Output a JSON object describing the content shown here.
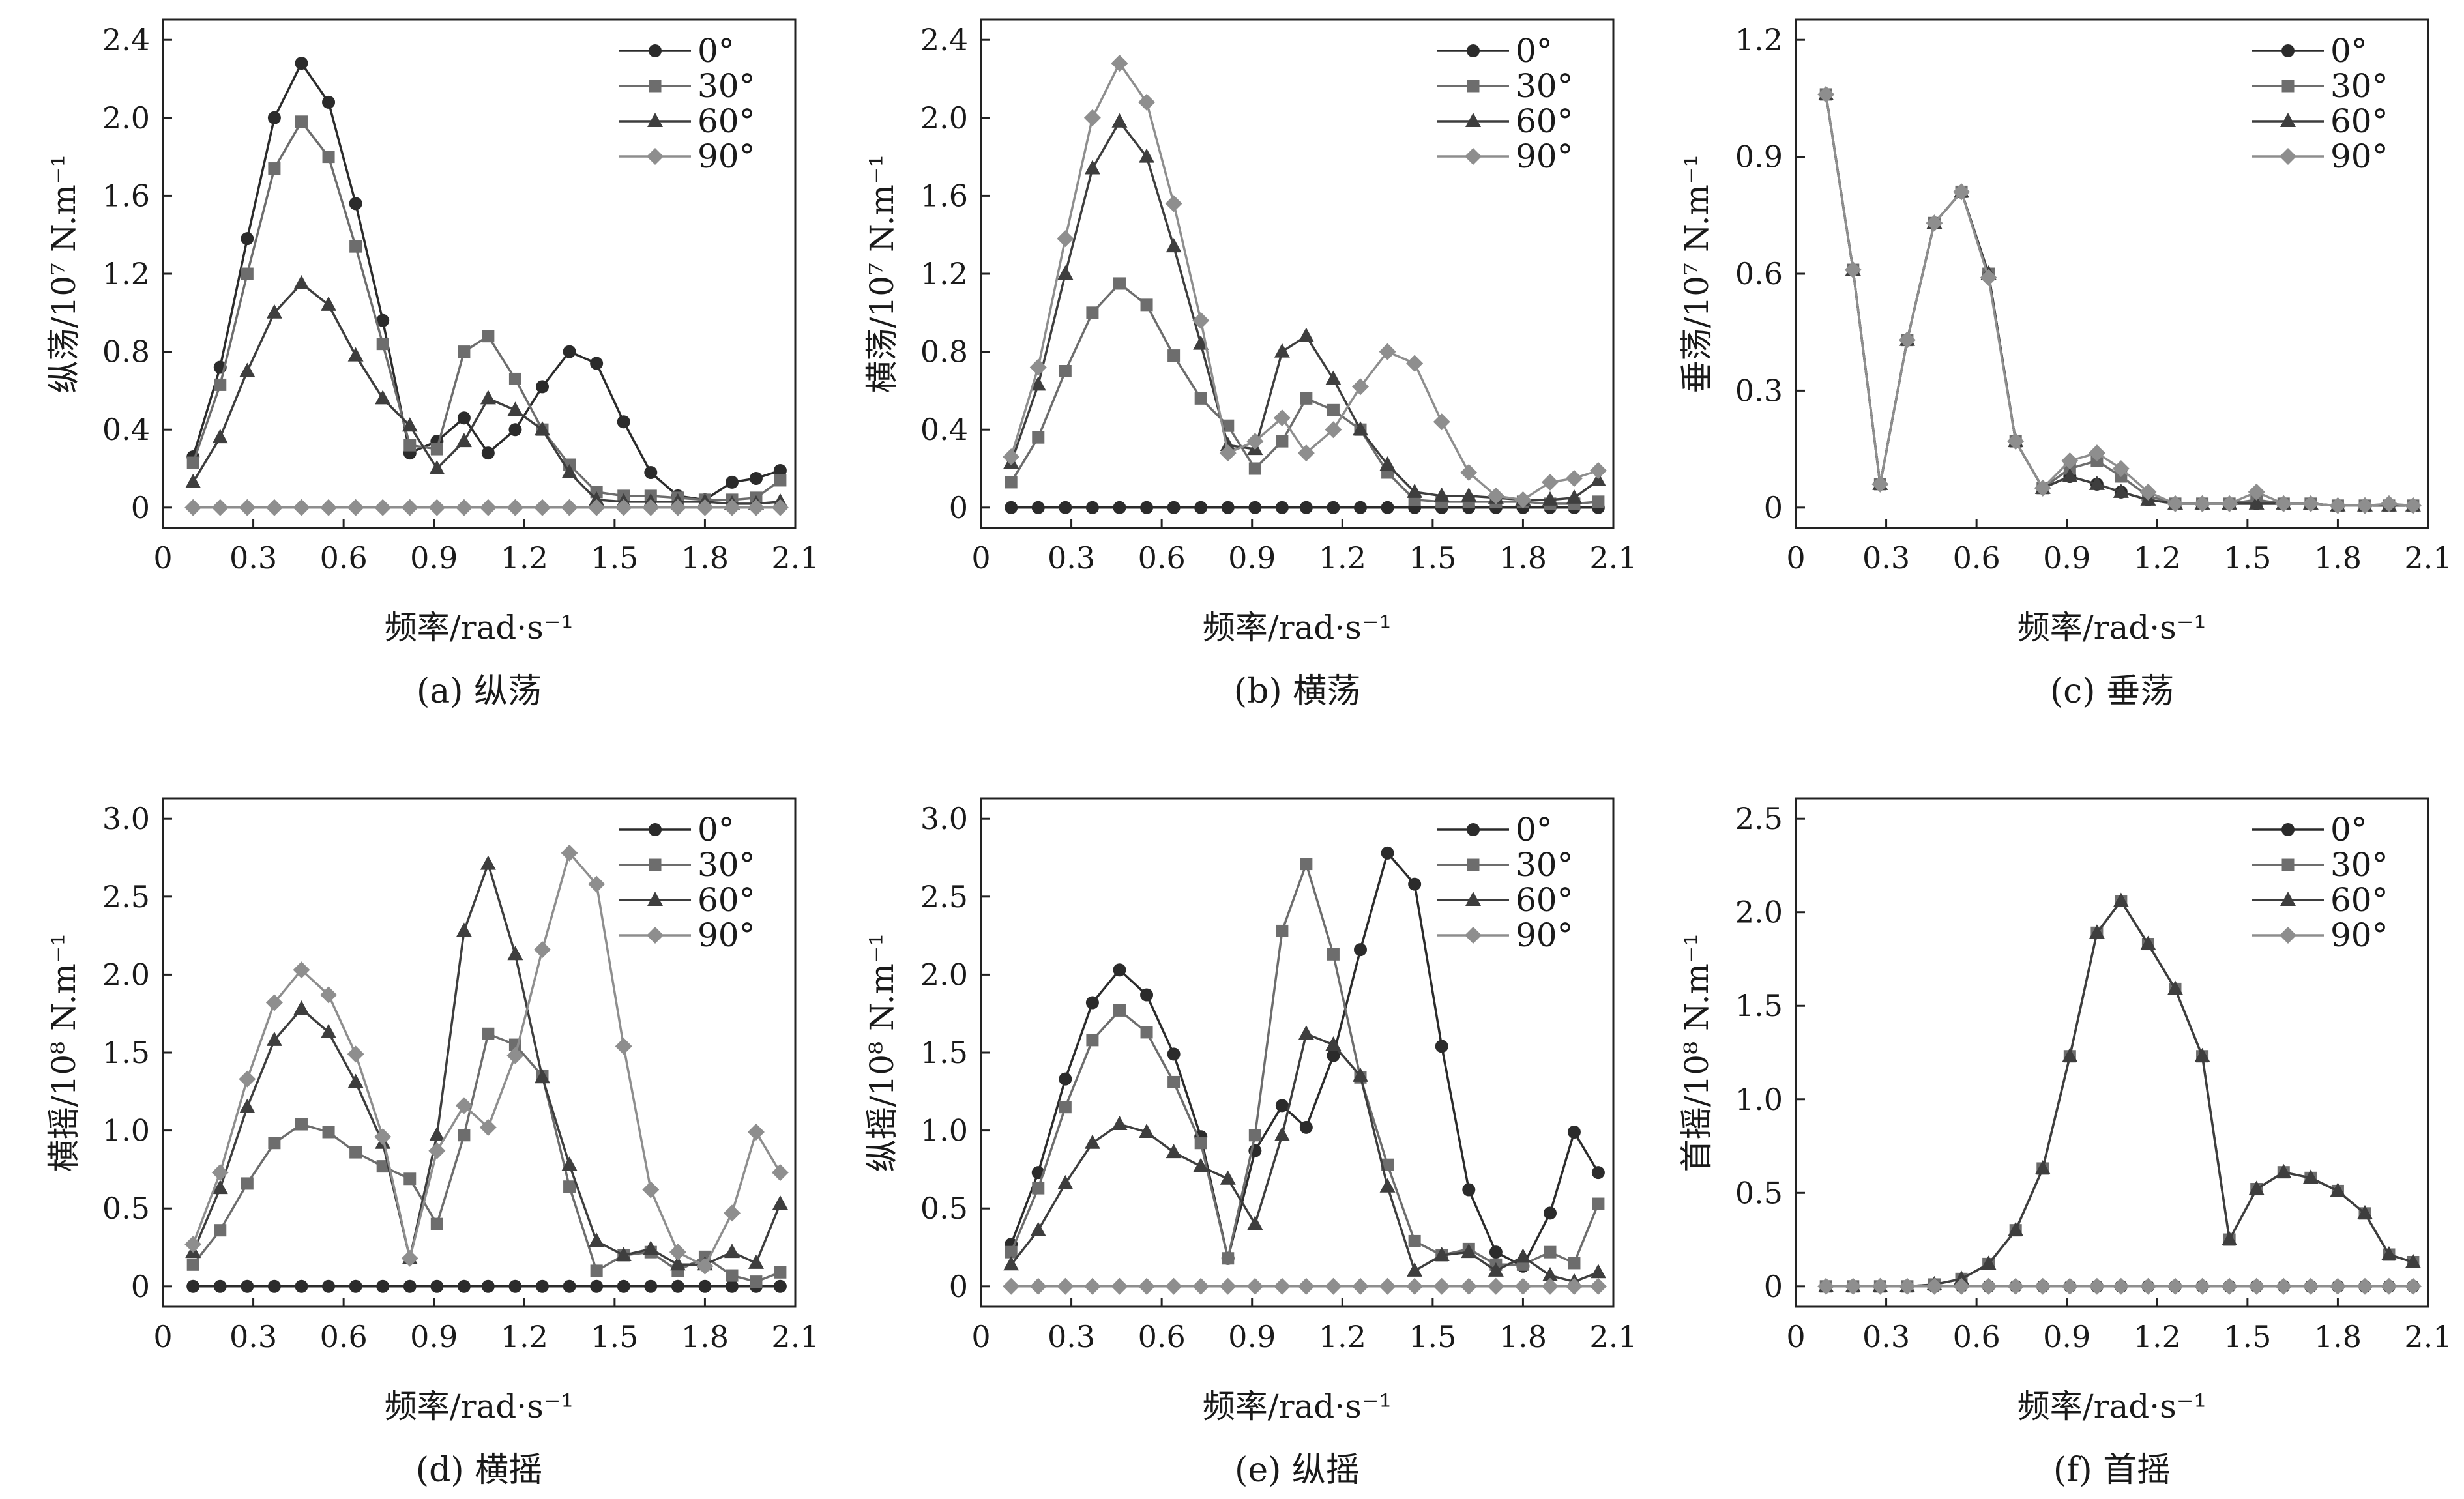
{
  "legend": [
    "0°",
    "30°",
    "60°",
    "90°"
  ],
  "series_colors": [
    "#2b2b2b",
    "#6d6d6d",
    "#3e3e3e",
    "#8e8e8e"
  ],
  "chart_data": [
    {
      "id": "a",
      "type": "line",
      "caption": "(a) 纵荡",
      "ylabel": "纵荡/10⁷ N.m⁻¹",
      "xlabel": "频率/rad·s⁻¹",
      "xlim": [
        0,
        2.1
      ],
      "ylim": [
        0,
        2.4
      ],
      "xticks": [
        "0",
        "0.3",
        "0.6",
        "0.9",
        "1.2",
        "1.5",
        "1.8",
        "2.1"
      ],
      "yticks": [
        "0",
        "0.4",
        "0.8",
        "1.2",
        "1.6",
        "2.0",
        "2.4"
      ],
      "x": [
        0.1,
        0.19,
        0.28,
        0.37,
        0.46,
        0.55,
        0.64,
        0.73,
        0.82,
        0.91,
        1.0,
        1.08,
        1.17,
        1.26,
        1.35,
        1.44,
        1.53,
        1.62,
        1.71,
        1.8,
        1.89,
        1.97,
        2.05
      ],
      "series": [
        {
          "name": "0°",
          "values": [
            0.26,
            0.72,
            1.38,
            2.0,
            2.28,
            2.08,
            1.56,
            0.96,
            0.28,
            0.34,
            0.46,
            0.28,
            0.4,
            0.62,
            0.8,
            0.74,
            0.44,
            0.18,
            0.06,
            0.04,
            0.13,
            0.15,
            0.19
          ]
        },
        {
          "name": "30°",
          "values": [
            0.23,
            0.63,
            1.2,
            1.74,
            1.98,
            1.8,
            1.34,
            0.84,
            0.32,
            0.3,
            0.8,
            0.88,
            0.66,
            0.4,
            0.22,
            0.08,
            0.06,
            0.06,
            0.05,
            0.04,
            0.04,
            0.05,
            0.14
          ]
        },
        {
          "name": "60°",
          "values": [
            0.13,
            0.36,
            0.7,
            1.0,
            1.15,
            1.04,
            0.78,
            0.56,
            0.42,
            0.2,
            0.34,
            0.56,
            0.5,
            0.4,
            0.18,
            0.04,
            0.03,
            0.03,
            0.03,
            0.03,
            0.02,
            0.02,
            0.03
          ]
        },
        {
          "name": "90°",
          "values": [
            0,
            0,
            0,
            0,
            0,
            0,
            0,
            0,
            0,
            0,
            0,
            0,
            0,
            0,
            0,
            0,
            0,
            0,
            0,
            0,
            0,
            0,
            0
          ]
        }
      ]
    },
    {
      "id": "b",
      "type": "line",
      "caption": "(b) 横荡",
      "ylabel": "横荡/10⁷ N.m⁻¹",
      "xlabel": "频率/rad·s⁻¹",
      "xlim": [
        0,
        2.1
      ],
      "ylim": [
        0,
        2.4
      ],
      "xticks": [
        "0",
        "0.3",
        "0.6",
        "0.9",
        "1.2",
        "1.5",
        "1.8",
        "2.1"
      ],
      "yticks": [
        "0",
        "0.4",
        "0.8",
        "1.2",
        "1.6",
        "2.0",
        "2.4"
      ],
      "x": [
        0.1,
        0.19,
        0.28,
        0.37,
        0.46,
        0.55,
        0.64,
        0.73,
        0.82,
        0.91,
        1.0,
        1.08,
        1.17,
        1.26,
        1.35,
        1.44,
        1.53,
        1.62,
        1.71,
        1.8,
        1.89,
        1.97,
        2.05
      ],
      "series": [
        {
          "name": "0°",
          "values": [
            0,
            0,
            0,
            0,
            0,
            0,
            0,
            0,
            0,
            0,
            0,
            0,
            0,
            0,
            0,
            0,
            0,
            0,
            0,
            0,
            0,
            0,
            0
          ]
        },
        {
          "name": "30°",
          "values": [
            0.13,
            0.36,
            0.7,
            1.0,
            1.15,
            1.04,
            0.78,
            0.56,
            0.42,
            0.2,
            0.34,
            0.56,
            0.5,
            0.4,
            0.18,
            0.04,
            0.03,
            0.03,
            0.03,
            0.03,
            0.02,
            0.02,
            0.03
          ]
        },
        {
          "name": "60°",
          "values": [
            0.23,
            0.63,
            1.2,
            1.74,
            1.98,
            1.8,
            1.34,
            0.84,
            0.32,
            0.3,
            0.8,
            0.88,
            0.66,
            0.4,
            0.22,
            0.08,
            0.06,
            0.06,
            0.05,
            0.04,
            0.04,
            0.05,
            0.14
          ]
        },
        {
          "name": "90°",
          "values": [
            0.26,
            0.72,
            1.38,
            2.0,
            2.28,
            2.08,
            1.56,
            0.96,
            0.28,
            0.34,
            0.46,
            0.28,
            0.4,
            0.62,
            0.8,
            0.74,
            0.44,
            0.18,
            0.06,
            0.04,
            0.13,
            0.15,
            0.19
          ]
        }
      ]
    },
    {
      "id": "c",
      "type": "line",
      "caption": "(c) 垂荡",
      "ylabel": "垂荡/10⁷ N.m⁻¹",
      "xlabel": "频率/rad·s⁻¹",
      "xlim": [
        0,
        2.1
      ],
      "ylim": [
        0,
        1.2
      ],
      "xticks": [
        "0",
        "0.3",
        "0.6",
        "0.9",
        "1.2",
        "1.5",
        "1.8",
        "2.1"
      ],
      "yticks": [
        "0",
        "0.3",
        "0.6",
        "0.9",
        "1.2"
      ],
      "x": [
        0.1,
        0.19,
        0.28,
        0.37,
        0.46,
        0.55,
        0.64,
        0.73,
        0.82,
        0.91,
        1.0,
        1.08,
        1.17,
        1.26,
        1.35,
        1.44,
        1.53,
        1.62,
        1.71,
        1.8,
        1.89,
        1.97,
        2.05
      ],
      "series": [
        {
          "name": "0°",
          "values": [
            1.06,
            0.61,
            0.06,
            0.43,
            0.73,
            0.81,
            0.6,
            0.17,
            0.05,
            0.08,
            0.06,
            0.04,
            0.02,
            0.01,
            0.01,
            0.01,
            0.01,
            0.01,
            0.01,
            0.005,
            0.005,
            0.005,
            0.005
          ]
        },
        {
          "name": "30°",
          "values": [
            1.06,
            0.61,
            0.06,
            0.43,
            0.73,
            0.81,
            0.6,
            0.17,
            0.05,
            0.1,
            0.12,
            0.08,
            0.03,
            0.01,
            0.01,
            0.01,
            0.02,
            0.01,
            0.01,
            0.005,
            0.005,
            0.005,
            0.005
          ]
        },
        {
          "name": "60°",
          "values": [
            1.06,
            0.61,
            0.06,
            0.43,
            0.73,
            0.81,
            0.6,
            0.17,
            0.05,
            0.08,
            0.06,
            0.04,
            0.02,
            0.01,
            0.01,
            0.01,
            0.01,
            0.01,
            0.01,
            0.005,
            0.005,
            0.005,
            0.005
          ]
        },
        {
          "name": "90°",
          "values": [
            1.06,
            0.61,
            0.06,
            0.43,
            0.73,
            0.81,
            0.59,
            0.17,
            0.05,
            0.12,
            0.14,
            0.1,
            0.04,
            0.01,
            0.01,
            0.01,
            0.04,
            0.01,
            0.01,
            0.005,
            0.005,
            0.01,
            0.005
          ]
        }
      ]
    },
    {
      "id": "d",
      "type": "line",
      "caption": "(d) 横摇",
      "ylabel": "横摇/10⁸ N.m⁻¹",
      "xlabel": "频率/rad·s⁻¹",
      "xlim": [
        0,
        2.1
      ],
      "ylim": [
        0,
        3.0
      ],
      "xticks": [
        "0",
        "0.3",
        "0.6",
        "0.9",
        "1.2",
        "1.5",
        "1.8",
        "2.1"
      ],
      "yticks": [
        "0",
        "0.5",
        "1.0",
        "1.5",
        "2.0",
        "2.5",
        "3.0"
      ],
      "x": [
        0.1,
        0.19,
        0.28,
        0.37,
        0.46,
        0.55,
        0.64,
        0.73,
        0.82,
        0.91,
        1.0,
        1.08,
        1.17,
        1.26,
        1.35,
        1.44,
        1.53,
        1.62,
        1.71,
        1.8,
        1.89,
        1.97,
        2.05
      ],
      "series": [
        {
          "name": "0°",
          "values": [
            0,
            0,
            0,
            0,
            0,
            0,
            0,
            0,
            0,
            0,
            0,
            0,
            0,
            0,
            0,
            0,
            0,
            0,
            0,
            0,
            0,
            0,
            0
          ]
        },
        {
          "name": "30°",
          "values": [
            0.14,
            0.36,
            0.66,
            0.92,
            1.04,
            0.99,
            0.86,
            0.77,
            0.69,
            0.4,
            0.97,
            1.62,
            1.55,
            1.35,
            0.64,
            0.1,
            0.2,
            0.22,
            0.1,
            0.19,
            0.07,
            0.03,
            0.09
          ]
        },
        {
          "name": "60°",
          "values": [
            0.22,
            0.63,
            1.15,
            1.58,
            1.78,
            1.63,
            1.31,
            0.92,
            0.18,
            0.97,
            2.28,
            2.71,
            2.13,
            1.34,
            0.78,
            0.29,
            0.2,
            0.24,
            0.14,
            0.14,
            0.22,
            0.15,
            0.53
          ]
        },
        {
          "name": "90°",
          "values": [
            0.27,
            0.73,
            1.33,
            1.82,
            2.03,
            1.87,
            1.49,
            0.96,
            0.18,
            0.87,
            1.16,
            1.02,
            1.48,
            2.16,
            2.78,
            2.58,
            1.54,
            0.62,
            0.22,
            0.13,
            0.47,
            0.99,
            0.73
          ]
        }
      ]
    },
    {
      "id": "e",
      "type": "line",
      "caption": "(e) 纵摇",
      "ylabel": "纵摇/10⁸ N.m⁻¹",
      "xlabel": "频率/rad·s⁻¹",
      "xlim": [
        0,
        2.1
      ],
      "ylim": [
        0,
        3.0
      ],
      "xticks": [
        "0",
        "0.3",
        "0.6",
        "0.9",
        "1.2",
        "1.5",
        "1.8",
        "2.1"
      ],
      "yticks": [
        "0",
        "0.5",
        "1.0",
        "1.5",
        "2.0",
        "2.5",
        "3.0"
      ],
      "x": [
        0.1,
        0.19,
        0.28,
        0.37,
        0.46,
        0.55,
        0.64,
        0.73,
        0.82,
        0.91,
        1.0,
        1.08,
        1.17,
        1.26,
        1.35,
        1.44,
        1.53,
        1.62,
        1.71,
        1.8,
        1.89,
        1.97,
        2.05
      ],
      "series": [
        {
          "name": "0°",
          "values": [
            0.27,
            0.73,
            1.33,
            1.82,
            2.03,
            1.87,
            1.49,
            0.96,
            0.18,
            0.87,
            1.16,
            1.02,
            1.48,
            2.16,
            2.78,
            2.58,
            1.54,
            0.62,
            0.22,
            0.13,
            0.47,
            0.99,
            0.73
          ]
        },
        {
          "name": "30°",
          "values": [
            0.22,
            0.63,
            1.15,
            1.58,
            1.77,
            1.63,
            1.31,
            0.92,
            0.18,
            0.97,
            2.28,
            2.71,
            2.13,
            1.34,
            0.78,
            0.29,
            0.2,
            0.24,
            0.14,
            0.14,
            0.22,
            0.15,
            0.53
          ]
        },
        {
          "name": "60°",
          "values": [
            0.14,
            0.36,
            0.66,
            0.92,
            1.04,
            0.99,
            0.86,
            0.77,
            0.69,
            0.4,
            0.97,
            1.62,
            1.55,
            1.35,
            0.64,
            0.1,
            0.2,
            0.22,
            0.1,
            0.19,
            0.07,
            0.03,
            0.09
          ]
        },
        {
          "name": "90°",
          "values": [
            0,
            0,
            0,
            0,
            0,
            0,
            0,
            0,
            0,
            0,
            0,
            0,
            0,
            0,
            0,
            0,
            0,
            0,
            0,
            0,
            0,
            0,
            0
          ]
        }
      ]
    },
    {
      "id": "f",
      "type": "line",
      "caption": "(f) 首摇",
      "ylabel": "首摇/10⁸ N.m⁻¹",
      "xlabel": "频率/rad·s⁻¹",
      "xlim": [
        0,
        2.1
      ],
      "ylim": [
        0,
        2.5
      ],
      "xticks": [
        "0",
        "0.3",
        "0.6",
        "0.9",
        "1.2",
        "1.5",
        "1.8",
        "2.1"
      ],
      "yticks": [
        "0",
        "0.5",
        "1.0",
        "1.5",
        "2.0",
        "2.5"
      ],
      "x": [
        0.1,
        0.19,
        0.28,
        0.37,
        0.46,
        0.55,
        0.64,
        0.73,
        0.82,
        0.91,
        1.0,
        1.08,
        1.17,
        1.26,
        1.35,
        1.44,
        1.53,
        1.62,
        1.71,
        1.8,
        1.89,
        1.97,
        2.05
      ],
      "series": [
        {
          "name": "0°",
          "values": [
            0,
            0,
            0,
            0,
            0,
            0,
            0,
            0,
            0,
            0,
            0,
            0,
            0,
            0,
            0,
            0,
            0,
            0,
            0,
            0,
            0,
            0,
            0
          ]
        },
        {
          "name": "30°",
          "values": [
            0,
            0,
            0,
            0,
            0.01,
            0.04,
            0.12,
            0.3,
            0.63,
            1.23,
            1.89,
            2.06,
            1.83,
            1.59,
            1.23,
            0.25,
            0.52,
            0.61,
            0.58,
            0.51,
            0.39,
            0.17,
            0.13
          ]
        },
        {
          "name": "60°",
          "values": [
            0,
            0,
            0,
            0,
            0.01,
            0.04,
            0.12,
            0.3,
            0.63,
            1.23,
            1.89,
            2.06,
            1.83,
            1.59,
            1.23,
            0.25,
            0.52,
            0.61,
            0.58,
            0.51,
            0.39,
            0.17,
            0.13
          ]
        },
        {
          "name": "90°",
          "values": [
            0,
            0,
            0,
            0,
            0,
            0,
            0,
            0,
            0,
            0,
            0,
            0,
            0,
            0,
            0,
            0,
            0,
            0,
            0,
            0,
            0,
            0,
            0
          ]
        }
      ]
    }
  ]
}
